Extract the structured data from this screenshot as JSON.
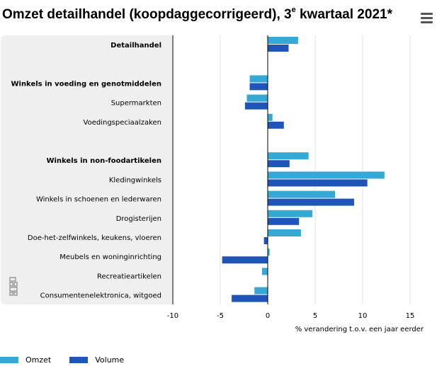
{
  "title": {
    "text_before": "Omzet detailhandel (koopdaggecorrigeerd), 3",
    "superscript": "e",
    "text_after": " kwartaal 2021*"
  },
  "colors": {
    "omzet": "#35a8d4",
    "volume": "#1f55b8",
    "panel": "#efefef"
  },
  "chart_data": {
    "type": "bar",
    "orientation": "horizontal",
    "title": "Omzet detailhandel (koopdaggecorrigeerd), 3e kwartaal 2021*",
    "xlabel": "% verandering t.o.v. een jaar eerder",
    "xlim": [
      -10,
      15
    ],
    "xticks": [
      "-10",
      "-5",
      "0",
      "5",
      "10",
      "15"
    ],
    "grid": true,
    "legend_position": "bottom-left",
    "categories": [
      {
        "label": "Detailhandel",
        "bold": true
      },
      {
        "label": "",
        "bold": false
      },
      {
        "label": "Winkels in voeding en genotmiddelen",
        "bold": true
      },
      {
        "label": "Supermarkten",
        "bold": false
      },
      {
        "label": "Voedingspeciaalzaken",
        "bold": false
      },
      {
        "label": "",
        "bold": false
      },
      {
        "label": "Winkels in non-foodartikelen",
        "bold": true
      },
      {
        "label": "Kledingwinkels",
        "bold": false
      },
      {
        "label": "Winkels in schoenen en lederwaren",
        "bold": false
      },
      {
        "label": "Drogisterijen",
        "bold": false
      },
      {
        "label": "Doe-het-zelfwinkels, keukens, vloeren",
        "bold": false
      },
      {
        "label": "Meubels en woninginrichting",
        "bold": false
      },
      {
        "label": "Recreatieartikelen",
        "bold": false
      },
      {
        "label": "Consumentenelektronica, witgoed",
        "bold": false
      }
    ],
    "series": [
      {
        "name": "Omzet",
        "values": [
          3.2,
          null,
          -1.9,
          -2.2,
          0.5,
          null,
          4.3,
          12.3,
          7.1,
          4.7,
          3.5,
          0.2,
          -0.6,
          -1.4
        ]
      },
      {
        "name": "Volume",
        "values": [
          2.2,
          null,
          -1.9,
          -2.4,
          1.7,
          null,
          2.3,
          10.5,
          9.1,
          3.3,
          -0.4,
          -4.8,
          0.0,
          -3.8
        ]
      }
    ]
  },
  "legend": [
    {
      "label": "Omzet",
      "color": "#35a8d4"
    },
    {
      "label": "Volume",
      "color": "#1f55b8"
    }
  ]
}
